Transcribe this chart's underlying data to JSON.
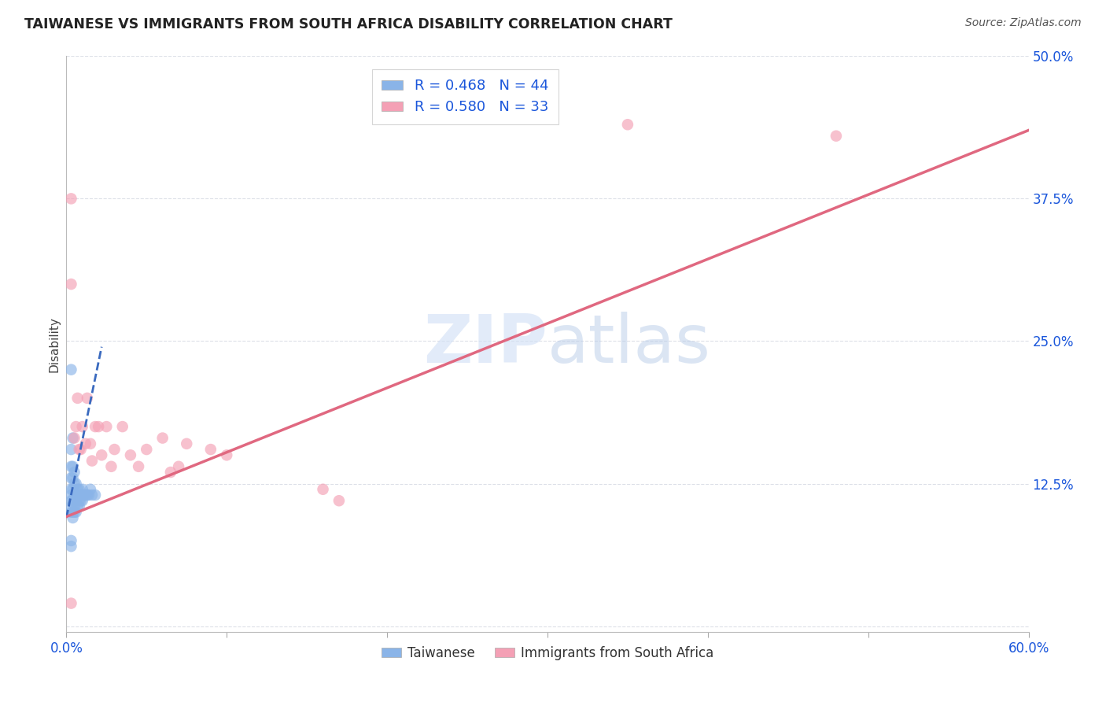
{
  "title": "TAIWANESE VS IMMIGRANTS FROM SOUTH AFRICA DISABILITY CORRELATION CHART",
  "source": "Source: ZipAtlas.com",
  "ylabel": "Disability",
  "background_color": "#ffffff",
  "watermark": "ZIPatlas",
  "taiwanese_R": 0.468,
  "taiwanese_N": 44,
  "southafrica_R": 0.58,
  "southafrica_N": 33,
  "x_min": 0.0,
  "x_max": 0.6,
  "y_min": 0.0,
  "y_max": 0.5,
  "x_ticks": [
    0.0,
    0.1,
    0.2,
    0.3,
    0.4,
    0.5,
    0.6
  ],
  "y_ticks": [
    0.0,
    0.125,
    0.25,
    0.375,
    0.5
  ],
  "x_tick_labels": [
    "0.0%",
    "",
    "",
    "",
    "",
    "",
    "60.0%"
  ],
  "y_tick_labels": [
    "",
    "12.5%",
    "25.0%",
    "37.5%",
    "50.0%"
  ],
  "taiwanese_color": "#8ab4e8",
  "southafrica_color": "#f4a0b5",
  "taiwanese_line_color": "#3a6abf",
  "southafrica_line_color": "#e06880",
  "grid_color": "#dde0e8",
  "title_color": "#222222",
  "axis_label_color": "#1a56db",
  "taiwanese_x": [
    0.003,
    0.003,
    0.003,
    0.003,
    0.003,
    0.003,
    0.003,
    0.003,
    0.004,
    0.004,
    0.004,
    0.004,
    0.004,
    0.004,
    0.005,
    0.005,
    0.005,
    0.005,
    0.005,
    0.006,
    0.006,
    0.006,
    0.006,
    0.007,
    0.007,
    0.007,
    0.008,
    0.008,
    0.008,
    0.009,
    0.009,
    0.01,
    0.01,
    0.011,
    0.012,
    0.013,
    0.014,
    0.015,
    0.016,
    0.018,
    0.003,
    0.004,
    0.003,
    0.003
  ],
  "taiwanese_y": [
    0.155,
    0.14,
    0.13,
    0.12,
    0.115,
    0.11,
    0.105,
    0.1,
    0.14,
    0.13,
    0.12,
    0.11,
    0.1,
    0.095,
    0.135,
    0.125,
    0.115,
    0.105,
    0.1,
    0.125,
    0.115,
    0.11,
    0.1,
    0.12,
    0.115,
    0.105,
    0.12,
    0.11,
    0.105,
    0.115,
    0.11,
    0.12,
    0.11,
    0.115,
    0.115,
    0.115,
    0.115,
    0.12,
    0.115,
    0.115,
    0.225,
    0.165,
    0.075,
    0.07
  ],
  "southafrica_x": [
    0.003,
    0.003,
    0.003,
    0.005,
    0.006,
    0.007,
    0.008,
    0.009,
    0.01,
    0.012,
    0.013,
    0.015,
    0.016,
    0.018,
    0.02,
    0.022,
    0.025,
    0.028,
    0.03,
    0.035,
    0.04,
    0.045,
    0.05,
    0.06,
    0.065,
    0.07,
    0.075,
    0.09,
    0.1,
    0.16,
    0.17,
    0.35,
    0.48
  ],
  "southafrica_y": [
    0.375,
    0.3,
    0.02,
    0.165,
    0.175,
    0.2,
    0.155,
    0.155,
    0.175,
    0.16,
    0.2,
    0.16,
    0.145,
    0.175,
    0.175,
    0.15,
    0.175,
    0.14,
    0.155,
    0.175,
    0.15,
    0.14,
    0.155,
    0.165,
    0.135,
    0.14,
    0.16,
    0.155,
    0.15,
    0.12,
    0.11,
    0.44,
    0.43
  ],
  "tw_line_x0": 0.0,
  "tw_line_x1": 0.022,
  "tw_line_y0": 0.095,
  "tw_line_y1": 0.245,
  "sa_line_x0": 0.0,
  "sa_line_x1": 0.6,
  "sa_line_y0": 0.096,
  "sa_line_y1": 0.435
}
